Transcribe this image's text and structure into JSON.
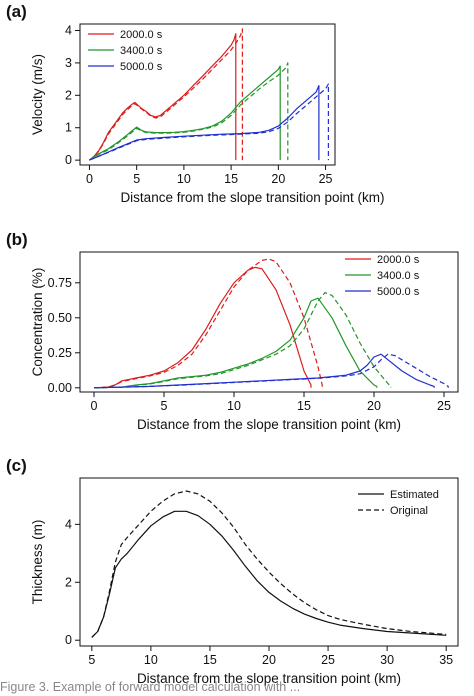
{
  "chart_data": [
    {
      "type": "line",
      "panel_label": "(a)",
      "xlabel": "Distance from the slope transition point (km)",
      "ylabel": "Velocity (m/s)",
      "xlim": [
        -1,
        26
      ],
      "ylim": [
        -0.15,
        4.2
      ],
      "xticks": [
        0,
        5,
        10,
        15,
        20,
        25
      ],
      "yticks": [
        0,
        1,
        2,
        3,
        4
      ],
      "legend_position": "top-left",
      "series": [
        {
          "name": "2000.0 s",
          "color": "#dd1c1c",
          "style": "solid",
          "x": [
            0,
            0.5,
            1,
            1.5,
            2,
            2.5,
            3,
            3.5,
            4,
            4.5,
            4.8,
            5,
            5.5,
            6,
            6.5,
            7,
            7.5,
            8,
            9,
            10,
            11,
            12,
            13,
            14,
            15,
            15.3,
            15.5,
            15.5
          ],
          "y": [
            0,
            0.12,
            0.3,
            0.55,
            0.85,
            1.05,
            1.25,
            1.45,
            1.6,
            1.72,
            1.78,
            1.73,
            1.6,
            1.5,
            1.38,
            1.33,
            1.38,
            1.5,
            1.75,
            2.0,
            2.3,
            2.6,
            2.9,
            3.2,
            3.55,
            3.7,
            3.9,
            0
          ]
        },
        {
          "name": "",
          "color": "#dd1c1c",
          "style": "dashed",
          "x": [
            0,
            0.5,
            1,
            1.5,
            2,
            2.5,
            3,
            3.5,
            4,
            4.5,
            4.8,
            5,
            5.5,
            6,
            6.5,
            7,
            7.5,
            8,
            9,
            10,
            11,
            12,
            13,
            14,
            15,
            15.5,
            16,
            16.2,
            16.2
          ],
          "y": [
            0,
            0.1,
            0.28,
            0.52,
            0.8,
            1.0,
            1.2,
            1.4,
            1.55,
            1.68,
            1.74,
            1.7,
            1.58,
            1.48,
            1.36,
            1.3,
            1.33,
            1.45,
            1.7,
            1.95,
            2.22,
            2.5,
            2.8,
            3.1,
            3.4,
            3.6,
            3.85,
            4.05,
            0
          ]
        },
        {
          "name": "3400.0 s",
          "color": "#22962a",
          "style": "solid",
          "x": [
            0,
            1,
            2,
            3,
            4,
            4.5,
            5,
            5.5,
            6,
            7,
            8,
            9,
            10,
            11,
            12,
            13,
            14,
            15,
            16,
            17,
            18,
            19,
            20,
            20.2,
            20.2
          ],
          "y": [
            0,
            0.2,
            0.35,
            0.55,
            0.78,
            0.9,
            1.02,
            0.92,
            0.87,
            0.85,
            0.85,
            0.86,
            0.88,
            0.92,
            0.97,
            1.05,
            1.2,
            1.45,
            1.8,
            2.05,
            2.3,
            2.55,
            2.8,
            2.9,
            0
          ]
        },
        {
          "name": "",
          "color": "#22962a",
          "style": "dashed",
          "x": [
            0,
            1,
            2,
            3,
            4,
            4.5,
            5,
            5.5,
            6,
            7,
            8,
            9,
            10,
            11,
            12,
            13,
            14,
            15,
            16,
            17,
            18,
            19,
            20,
            20.8,
            21,
            21
          ],
          "y": [
            0,
            0.18,
            0.32,
            0.52,
            0.74,
            0.86,
            0.98,
            0.9,
            0.85,
            0.83,
            0.83,
            0.84,
            0.86,
            0.9,
            0.95,
            1.02,
            1.15,
            1.38,
            1.7,
            1.95,
            2.2,
            2.42,
            2.62,
            2.85,
            3.0,
            0
          ]
        },
        {
          "name": "5000.0 s",
          "color": "#1f2fd0",
          "style": "solid",
          "x": [
            0,
            1,
            2,
            3,
            4,
            5,
            6,
            8,
            10,
            12,
            14,
            16,
            18,
            19,
            20,
            21,
            22,
            23,
            24,
            24.3,
            24.3
          ],
          "y": [
            0,
            0.12,
            0.25,
            0.38,
            0.5,
            0.62,
            0.66,
            0.7,
            0.74,
            0.77,
            0.8,
            0.82,
            0.86,
            0.92,
            1.05,
            1.3,
            1.6,
            1.85,
            2.1,
            2.3,
            0
          ]
        },
        {
          "name": "",
          "color": "#1f2fd0",
          "style": "dashed",
          "x": [
            0,
            1,
            2,
            3,
            4,
            5,
            6,
            8,
            10,
            12,
            14,
            16,
            18,
            19,
            20,
            21,
            22,
            23,
            24,
            25,
            25.3,
            25.3
          ],
          "y": [
            0,
            0.12,
            0.24,
            0.36,
            0.48,
            0.6,
            0.64,
            0.68,
            0.72,
            0.75,
            0.78,
            0.8,
            0.83,
            0.88,
            0.98,
            1.18,
            1.45,
            1.7,
            1.95,
            2.2,
            2.35,
            0
          ]
        }
      ]
    },
    {
      "type": "line",
      "panel_label": "(b)",
      "xlabel": "Distance from the slope transition point (km)",
      "ylabel": "Concentration (%)",
      "xlim": [
        -1,
        26
      ],
      "ylim": [
        -0.03,
        0.97
      ],
      "xticks": [
        0,
        5,
        10,
        15,
        20,
        25
      ],
      "yticks": [
        0.0,
        0.25,
        0.5,
        0.75
      ],
      "ytick_labels": [
        "0.00",
        "0.25",
        "0.50",
        "0.75"
      ],
      "legend_position": "top-right",
      "series": [
        {
          "name": "2000.0 s",
          "color": "#dd1c1c",
          "style": "solid",
          "x": [
            0,
            1,
            1.5,
            2,
            3,
            4,
            5,
            6,
            7,
            8,
            9,
            10,
            11,
            11.5,
            12,
            13,
            14,
            15,
            15.5,
            15.5
          ],
          "y": [
            0,
            0.005,
            0.02,
            0.05,
            0.07,
            0.09,
            0.12,
            0.18,
            0.27,
            0.42,
            0.6,
            0.75,
            0.84,
            0.86,
            0.85,
            0.7,
            0.45,
            0.12,
            0.02,
            0
          ]
        },
        {
          "name": "",
          "color": "#dd1c1c",
          "style": "dashed",
          "x": [
            0,
            1,
            1.5,
            2,
            3,
            4,
            5,
            6,
            7,
            8,
            9,
            10,
            11,
            12,
            12.5,
            13,
            14,
            15,
            16,
            16.3,
            16.3
          ],
          "y": [
            0,
            0.005,
            0.02,
            0.045,
            0.065,
            0.085,
            0.11,
            0.16,
            0.24,
            0.38,
            0.55,
            0.72,
            0.84,
            0.91,
            0.92,
            0.9,
            0.75,
            0.5,
            0.15,
            0.02,
            0
          ]
        },
        {
          "name": "3400.0 s",
          "color": "#22962a",
          "style": "solid",
          "x": [
            0,
            2,
            3,
            4,
            5,
            6,
            7,
            8,
            9,
            10,
            11,
            12,
            13,
            14,
            15,
            15.5,
            16,
            17,
            18,
            19,
            20,
            20.2,
            20.2
          ],
          "y": [
            0,
            0.005,
            0.02,
            0.03,
            0.05,
            0.07,
            0.08,
            0.09,
            0.11,
            0.14,
            0.17,
            0.21,
            0.26,
            0.34,
            0.5,
            0.62,
            0.64,
            0.5,
            0.3,
            0.12,
            0.02,
            0.01,
            0
          ]
        },
        {
          "name": "",
          "color": "#22962a",
          "style": "dashed",
          "x": [
            0,
            2,
            3,
            4,
            5,
            6,
            7,
            8,
            9,
            10,
            11,
            12,
            13,
            14,
            15,
            16,
            16.5,
            17,
            18,
            19,
            20,
            21,
            21.2,
            21.2
          ],
          "y": [
            0,
            0.005,
            0.018,
            0.028,
            0.045,
            0.065,
            0.075,
            0.085,
            0.1,
            0.13,
            0.16,
            0.2,
            0.24,
            0.3,
            0.42,
            0.62,
            0.68,
            0.66,
            0.52,
            0.32,
            0.15,
            0.03,
            0.01,
            0
          ]
        },
        {
          "name": "5000.0 s",
          "color": "#1f2fd0",
          "style": "solid",
          "x": [
            0,
            2,
            4,
            6,
            8,
            10,
            12,
            14,
            16,
            17,
            18,
            19,
            19.5,
            20,
            20.5,
            21,
            22,
            23,
            24,
            24.3,
            24.3
          ],
          "y": [
            0,
            0.005,
            0.01,
            0.02,
            0.03,
            0.04,
            0.05,
            0.06,
            0.07,
            0.08,
            0.09,
            0.12,
            0.16,
            0.22,
            0.24,
            0.2,
            0.12,
            0.06,
            0.02,
            0.01,
            0
          ]
        },
        {
          "name": "",
          "color": "#1f2fd0",
          "style": "dashed",
          "x": [
            0,
            2,
            4,
            6,
            8,
            10,
            12,
            14,
            16,
            17,
            18,
            19,
            20,
            20.5,
            21,
            21.5,
            22,
            23,
            24,
            25,
            25.3,
            25.3
          ],
          "y": [
            0,
            0.005,
            0.01,
            0.018,
            0.028,
            0.038,
            0.048,
            0.058,
            0.068,
            0.076,
            0.085,
            0.1,
            0.15,
            0.2,
            0.24,
            0.23,
            0.2,
            0.14,
            0.08,
            0.03,
            0.01,
            0
          ]
        }
      ]
    },
    {
      "type": "line",
      "panel_label": "(c)",
      "xlabel": "Distance from the slope transition point (km)",
      "ylabel": "Thickness (m)",
      "xlim": [
        4,
        36
      ],
      "ylim": [
        -0.2,
        5.6
      ],
      "xticks": [
        5,
        10,
        15,
        20,
        25,
        30,
        35
      ],
      "yticks": [
        0,
        2,
        4
      ],
      "legend_position": "top-right",
      "series": [
        {
          "name": "Estimated",
          "color": "#111111",
          "style": "solid",
          "x": [
            5,
            5.5,
            6,
            6.5,
            7,
            7.5,
            8,
            9,
            10,
            11,
            12,
            13,
            14,
            15,
            16,
            17,
            18,
            19,
            20,
            21,
            22,
            23,
            24,
            25,
            26,
            28,
            30,
            32,
            35
          ],
          "y": [
            0.1,
            0.3,
            0.8,
            1.6,
            2.5,
            2.8,
            3.0,
            3.5,
            3.95,
            4.25,
            4.45,
            4.45,
            4.3,
            4.0,
            3.6,
            3.1,
            2.55,
            2.05,
            1.65,
            1.35,
            1.1,
            0.9,
            0.75,
            0.62,
            0.52,
            0.4,
            0.3,
            0.25,
            0.17
          ]
        },
        {
          "name": "Original",
          "color": "#111111",
          "style": "dashed",
          "x": [
            5,
            5.5,
            6,
            6.5,
            7,
            7.5,
            8,
            9,
            10,
            11,
            12,
            13,
            14,
            15,
            16,
            17,
            18,
            19,
            20,
            21,
            22,
            23,
            24,
            25,
            26,
            28,
            30,
            32,
            35
          ],
          "y": [
            0.1,
            0.3,
            0.8,
            1.7,
            2.7,
            3.3,
            3.55,
            4.0,
            4.45,
            4.8,
            5.05,
            5.15,
            5.05,
            4.8,
            4.4,
            3.9,
            3.3,
            2.8,
            2.35,
            1.95,
            1.6,
            1.3,
            1.05,
            0.85,
            0.72,
            0.55,
            0.4,
            0.3,
            0.2
          ]
        }
      ]
    }
  ],
  "caption": "Figure 3. Example of forward model calculation with ..."
}
